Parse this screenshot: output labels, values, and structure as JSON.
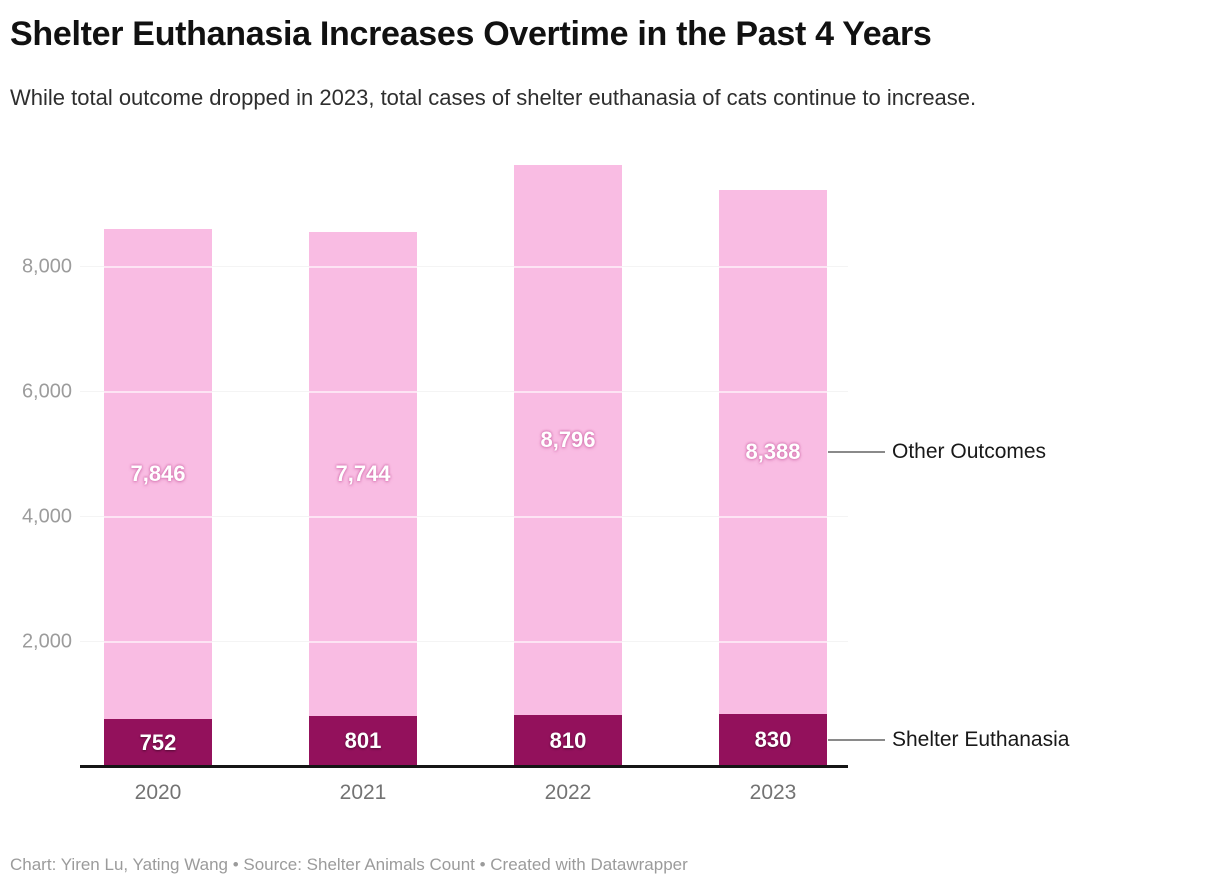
{
  "header": {
    "title": "Shelter Euthanasia Increases Overtime in the Past 4 Years",
    "subtitle": "While total outcome dropped in 2023, total cases of shelter euthanasia of cats continue to increase."
  },
  "footer": {
    "text": "Chart: Yiren Lu, Yating Wang • Source: Shelter Animals Count • Created with Datawrapper"
  },
  "chart_data": {
    "type": "bar",
    "stacked": true,
    "title": "Shelter Euthanasia Increases Overtime in the Past 4 Years",
    "categories": [
      "2020",
      "2021",
      "2022",
      "2023"
    ],
    "series": [
      {
        "name": "Shelter Euthanasia",
        "color": "#93115c",
        "values": [
          752,
          801,
          810,
          830
        ],
        "value_labels": [
          "752",
          "801",
          "810",
          "830"
        ],
        "label_style": "on-dark"
      },
      {
        "name": "Other Outcomes",
        "color": "#f9bce3",
        "values": [
          7846,
          7744,
          8796,
          8388
        ],
        "value_labels": [
          "7,846",
          "7,744",
          "8,796",
          "8,388"
        ],
        "label_style": "on-pink"
      }
    ],
    "y_axis": {
      "ticks": [
        {
          "value": 2000,
          "label": "2,000"
        },
        {
          "value": 4000,
          "label": "4,000"
        },
        {
          "value": 6000,
          "label": "6,000"
        },
        {
          "value": 8000,
          "label": "8,000"
        }
      ],
      "range": [
        0,
        9606
      ],
      "gridlines": true
    },
    "annotations": [
      {
        "label": "Other Outcomes",
        "series": "Other Outcomes"
      },
      {
        "label": "Shelter Euthanasia",
        "series": "Shelter Euthanasia"
      }
    ],
    "legend_position": "right-annotations",
    "colors": {
      "shelter_euthanasia": "#93115c",
      "other_outcomes": "#f9bce3",
      "gridline": "#e4e4e4",
      "axis": "#151515"
    }
  }
}
